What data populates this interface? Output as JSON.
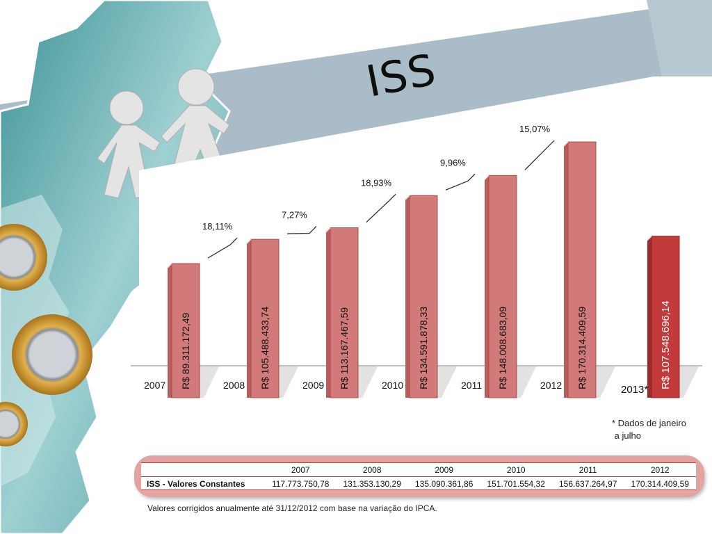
{
  "title": "ISS",
  "colors": {
    "bar": "#d27a7a",
    "bar_dark": "#b85c5c",
    "bar_highlight": "#c23a3a",
    "band": "#a9bcc7",
    "teal": "#5fa8ac"
  },
  "chart_data": {
    "type": "bar",
    "categories": [
      "2007",
      "2008",
      "2009",
      "2010",
      "2011",
      "2012",
      "2013*"
    ],
    "values": [
      89311172.49,
      105488433.74,
      113167467.59,
      134591878.33,
      148008683.09,
      170314409.59,
      107548696.14
    ],
    "value_labels": [
      "R$ 89.311.172,49",
      "R$ 105.488.433,74",
      "R$ 113.167.467,59",
      "R$ 134.591.878,33",
      "R$ 148.008.683,09",
      "R$ 170.314.409,59",
      "R$ 107.548.696,14"
    ],
    "growth_labels": [
      "18,11%",
      "7,27%",
      "18,93%",
      "9,96%",
      "15,07%"
    ],
    "highlight_index": 6
  },
  "footnote": "* Dados de janeiro\n a julho",
  "table": {
    "years": [
      "2007",
      "2008",
      "2009",
      "2010",
      "2011",
      "2012"
    ],
    "row_label": "ISS - Valores Constantes",
    "values": [
      "117.773.750,78",
      "131.353.130,29",
      "135.090.361,86",
      "151.701.554,32",
      "156.637.264,97",
      "170.314.409,59"
    ]
  },
  "caption": "Valores corrigidos anualmente até 31/12/2012 com base na variação do IPCA."
}
